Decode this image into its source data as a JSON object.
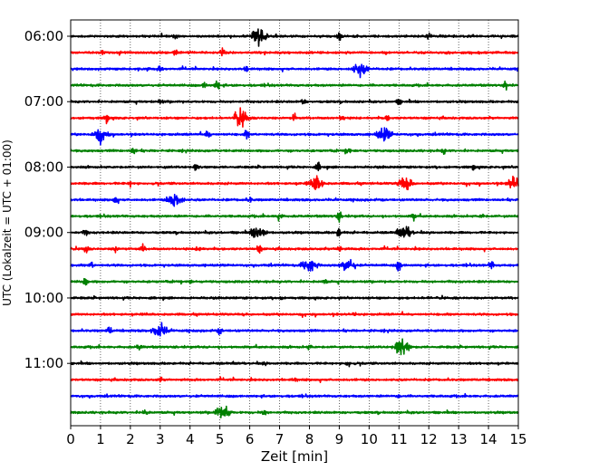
{
  "chart_data": {
    "type": "line",
    "title": "",
    "xlabel": "Zeit  [min]",
    "ylabel": "UTC (Lokalzeit = UTC + 01:00)",
    "xlim": [
      0,
      15
    ],
    "x_ticks": [
      "0",
      "1",
      "2",
      "3",
      "4",
      "5",
      "6",
      "7",
      "8",
      "9",
      "10",
      "11",
      "12",
      "13",
      "14",
      "15"
    ],
    "y_tick_labels": [
      "06:00",
      "07:00",
      "08:00",
      "09:00",
      "10:00",
      "11:00"
    ],
    "grid_x": true,
    "trace_colors": [
      "#000000",
      "#ff0000",
      "#0000ff",
      "#008000"
    ],
    "trace_interval_min": 15,
    "traces": [
      {
        "start": "06:00",
        "color": "black",
        "events": [
          [
            6.3,
            1.0
          ],
          [
            9.0,
            0.5
          ],
          [
            3.5,
            0.3
          ],
          [
            12.0,
            0.3
          ]
        ]
      },
      {
        "start": "06:15",
        "color": "red",
        "events": [
          [
            5.1,
            0.6
          ],
          [
            3.5,
            0.4
          ],
          [
            1.1,
            0.3
          ]
        ]
      },
      {
        "start": "06:30",
        "color": "blue",
        "events": [
          [
            9.7,
            0.8
          ],
          [
            5.9,
            0.4
          ],
          [
            3.0,
            0.3
          ]
        ]
      },
      {
        "start": "06:45",
        "color": "green",
        "events": [
          [
            4.9,
            0.7
          ],
          [
            14.6,
            0.6
          ],
          [
            4.5,
            0.4
          ]
        ]
      },
      {
        "start": "07:00",
        "color": "black",
        "events": [
          [
            7.8,
            0.4
          ],
          [
            3.0,
            0.3
          ],
          [
            11.0,
            0.3
          ]
        ]
      },
      {
        "start": "07:15",
        "color": "red",
        "events": [
          [
            5.7,
            1.1
          ],
          [
            1.2,
            0.6
          ],
          [
            7.5,
            0.5
          ],
          [
            9.1,
            0.5
          ],
          [
            10.6,
            0.4
          ]
        ]
      },
      {
        "start": "07:30",
        "color": "blue",
        "events": [
          [
            1.0,
            0.9
          ],
          [
            4.6,
            0.6
          ],
          [
            10.5,
            0.8
          ],
          [
            5.9,
            0.5
          ]
        ]
      },
      {
        "start": "07:45",
        "color": "green",
        "events": [
          [
            2.1,
            0.5
          ],
          [
            9.3,
            0.5
          ],
          [
            12.5,
            0.3
          ]
        ]
      },
      {
        "start": "08:00",
        "color": "black",
        "events": [
          [
            8.3,
            0.5
          ],
          [
            4.2,
            0.3
          ],
          [
            13.5,
            0.3
          ]
        ]
      },
      {
        "start": "08:15",
        "color": "red",
        "events": [
          [
            8.2,
            1.0
          ],
          [
            11.2,
            0.8
          ],
          [
            14.9,
            1.0
          ],
          [
            2.0,
            0.3
          ]
        ]
      },
      {
        "start": "08:30",
        "color": "blue",
        "events": [
          [
            3.5,
            1.0
          ],
          [
            1.5,
            0.6
          ],
          [
            6.0,
            0.3
          ]
        ]
      },
      {
        "start": "08:45",
        "color": "green",
        "events": [
          [
            7.0,
            0.7
          ],
          [
            9.0,
            0.6
          ],
          [
            11.5,
            0.4
          ],
          [
            13.8,
            0.3
          ]
        ]
      },
      {
        "start": "09:00",
        "color": "black",
        "events": [
          [
            11.2,
            0.8
          ],
          [
            6.3,
            0.9
          ],
          [
            9.0,
            0.7
          ],
          [
            0.5,
            0.4
          ]
        ]
      },
      {
        "start": "09:15",
        "color": "red",
        "events": [
          [
            0.5,
            0.5
          ],
          [
            2.4,
            0.5
          ],
          [
            1.5,
            0.4
          ],
          [
            4.3,
            0.5
          ],
          [
            6.3,
            0.6
          ],
          [
            9.0,
            0.6
          ]
        ]
      },
      {
        "start": "09:30",
        "color": "blue",
        "events": [
          [
            9.3,
            0.8
          ],
          [
            8.0,
            0.9
          ],
          [
            11.0,
            0.7
          ],
          [
            14.1,
            0.5
          ],
          [
            0.7,
            0.4
          ]
        ]
      },
      {
        "start": "09:45",
        "color": "green",
        "events": [
          [
            0.5,
            0.6
          ],
          [
            4.0,
            0.2
          ],
          [
            8.5,
            0.3
          ]
        ]
      },
      {
        "start": "10:00",
        "color": "black",
        "events": [
          [
            7.0,
            0.2
          ],
          [
            12.0,
            0.2
          ]
        ]
      },
      {
        "start": "10:15",
        "color": "red",
        "events": [
          [
            2.5,
            0.2
          ],
          [
            9.5,
            0.2
          ]
        ]
      },
      {
        "start": "10:30",
        "color": "blue",
        "events": [
          [
            3.0,
            1.0
          ],
          [
            1.3,
            0.5
          ],
          [
            5.0,
            0.4
          ]
        ]
      },
      {
        "start": "10:45",
        "color": "green",
        "events": [
          [
            11.1,
            1.0
          ],
          [
            2.3,
            0.4
          ],
          [
            8.0,
            0.3
          ]
        ]
      },
      {
        "start": "11:00",
        "color": "black",
        "events": [
          [
            9.3,
            0.5
          ],
          [
            6.5,
            0.2
          ]
        ]
      },
      {
        "start": "11:15",
        "color": "red",
        "events": [
          [
            7.5,
            0.2
          ],
          [
            3.0,
            0.2
          ]
        ]
      },
      {
        "start": "11:30",
        "color": "blue",
        "events": [
          [
            11.0,
            0.15
          ]
        ]
      },
      {
        "start": "11:45",
        "color": "green",
        "events": [
          [
            5.1,
            1.0
          ],
          [
            2.5,
            0.5
          ],
          [
            6.5,
            0.4
          ]
        ]
      }
    ]
  }
}
